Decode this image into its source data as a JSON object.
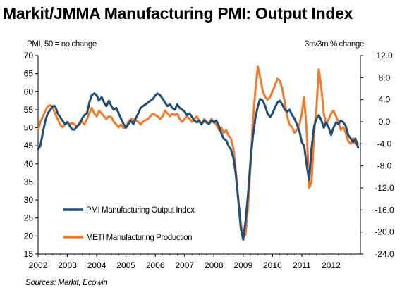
{
  "title": "Markit/JMMA Manufacturing PMI: Output Index",
  "source": "Sources: Markit, Ecowin",
  "colors": {
    "pmi": "#1f4e79",
    "meti": "#f47a2a"
  },
  "chart_data": {
    "type": "line",
    "ylabel_left": "PMI, 50 = no change",
    "ylabel_right": "3m/3m % change",
    "y_left": {
      "min": 15,
      "max": 70,
      "ticks": [
        "70",
        "65",
        "60",
        "55",
        "50",
        "45",
        "40",
        "35",
        "30",
        "25",
        "20",
        "15"
      ]
    },
    "y_right": {
      "min": -24,
      "max": 12,
      "ticks": [
        "12.0",
        "8.0",
        "4.0",
        "0.0",
        "-4.0",
        "-8.0",
        "-12.0",
        "-16.0",
        "-20.0",
        "-24.0"
      ]
    },
    "x_ticks": [
      "2002",
      "2003",
      "2004",
      "2005",
      "2006",
      "2007",
      "2008",
      "2009",
      "2010",
      "2011",
      "2012"
    ],
    "x_range": [
      2002,
      2013
    ],
    "grid": false,
    "legend_position": "bottom-left",
    "series": [
      {
        "name": "PMI Manufacturing Output Index",
        "axis": "left",
        "color": "#1f4e79",
        "points": [
          [
            2002.0,
            44.0
          ],
          [
            2002.08,
            45.0
          ],
          [
            2002.17,
            49.0
          ],
          [
            2002.25,
            52.0
          ],
          [
            2002.33,
            54.0
          ],
          [
            2002.42,
            55.0
          ],
          [
            2002.5,
            56.0
          ],
          [
            2002.58,
            56.0
          ],
          [
            2002.67,
            54.0
          ],
          [
            2002.75,
            53.0
          ],
          [
            2002.83,
            52.0
          ],
          [
            2002.92,
            51.0
          ],
          [
            2003.0,
            51.5
          ],
          [
            2003.08,
            50.5
          ],
          [
            2003.17,
            49.5
          ],
          [
            2003.25,
            49.5
          ],
          [
            2003.33,
            50.5
          ],
          [
            2003.42,
            51.0
          ],
          [
            2003.5,
            52.5
          ],
          [
            2003.58,
            53.5
          ],
          [
            2003.67,
            54.0
          ],
          [
            2003.75,
            57.0
          ],
          [
            2003.83,
            59.0
          ],
          [
            2003.92,
            59.5
          ],
          [
            2004.0,
            59.0
          ],
          [
            2004.08,
            57.5
          ],
          [
            2004.17,
            58.5
          ],
          [
            2004.25,
            57.0
          ],
          [
            2004.33,
            56.0
          ],
          [
            2004.42,
            57.5
          ],
          [
            2004.5,
            56.0
          ],
          [
            2004.58,
            55.0
          ],
          [
            2004.67,
            55.5
          ],
          [
            2004.75,
            54.0
          ],
          [
            2004.83,
            52.5
          ],
          [
            2004.92,
            51.0
          ],
          [
            2005.0,
            50.0
          ],
          [
            2005.08,
            51.0
          ],
          [
            2005.17,
            52.0
          ],
          [
            2005.25,
            51.0
          ],
          [
            2005.33,
            52.5
          ],
          [
            2005.42,
            54.0
          ],
          [
            2005.5,
            55.5
          ],
          [
            2005.58,
            56.0
          ],
          [
            2005.67,
            56.5
          ],
          [
            2005.75,
            57.0
          ],
          [
            2005.83,
            57.5
          ],
          [
            2005.92,
            58.0
          ],
          [
            2006.0,
            59.0
          ],
          [
            2006.08,
            59.5
          ],
          [
            2006.17,
            59.0
          ],
          [
            2006.25,
            58.0
          ],
          [
            2006.33,
            57.0
          ],
          [
            2006.42,
            56.0
          ],
          [
            2006.5,
            56.5
          ],
          [
            2006.58,
            55.5
          ],
          [
            2006.67,
            55.0
          ],
          [
            2006.75,
            56.5
          ],
          [
            2006.83,
            55.5
          ],
          [
            2006.92,
            55.0
          ],
          [
            2007.0,
            54.5
          ],
          [
            2007.08,
            53.5
          ],
          [
            2007.17,
            54.0
          ],
          [
            2007.25,
            53.0
          ],
          [
            2007.33,
            52.0
          ],
          [
            2007.42,
            51.5
          ],
          [
            2007.5,
            52.0
          ],
          [
            2007.58,
            51.0
          ],
          [
            2007.67,
            52.0
          ],
          [
            2007.75,
            51.5
          ],
          [
            2007.83,
            51.0
          ],
          [
            2007.92,
            52.0
          ],
          [
            2008.0,
            51.5
          ],
          [
            2008.08,
            52.0
          ],
          [
            2008.17,
            50.5
          ],
          [
            2008.25,
            48.5
          ],
          [
            2008.33,
            47.0
          ],
          [
            2008.42,
            46.5
          ],
          [
            2008.5,
            45.0
          ],
          [
            2008.58,
            44.0
          ],
          [
            2008.67,
            41.5
          ],
          [
            2008.75,
            37.0
          ],
          [
            2008.83,
            30.0
          ],
          [
            2008.92,
            22.0
          ],
          [
            2009.0,
            19.0
          ],
          [
            2009.08,
            24.0
          ],
          [
            2009.17,
            32.0
          ],
          [
            2009.25,
            41.0
          ],
          [
            2009.33,
            47.5
          ],
          [
            2009.42,
            53.0
          ],
          [
            2009.5,
            56.0
          ],
          [
            2009.58,
            58.0
          ],
          [
            2009.67,
            57.5
          ],
          [
            2009.75,
            56.0
          ],
          [
            2009.83,
            54.0
          ],
          [
            2009.92,
            53.0
          ],
          [
            2010.0,
            54.0
          ],
          [
            2010.08,
            55.5
          ],
          [
            2010.17,
            57.0
          ],
          [
            2010.25,
            57.5
          ],
          [
            2010.33,
            56.5
          ],
          [
            2010.42,
            55.0
          ],
          [
            2010.5,
            54.5
          ],
          [
            2010.58,
            55.0
          ],
          [
            2010.67,
            53.5
          ],
          [
            2010.75,
            52.5
          ],
          [
            2010.83,
            51.0
          ],
          [
            2010.92,
            49.0
          ],
          [
            2011.0,
            46.0
          ],
          [
            2011.08,
            45.0
          ],
          [
            2011.17,
            39.5
          ],
          [
            2011.25,
            35.5
          ],
          [
            2011.33,
            44.0
          ],
          [
            2011.42,
            50.5
          ],
          [
            2011.5,
            52.5
          ],
          [
            2011.58,
            53.5
          ],
          [
            2011.67,
            52.0
          ],
          [
            2011.75,
            50.0
          ],
          [
            2011.83,
            51.5
          ],
          [
            2011.92,
            50.0
          ],
          [
            2012.0,
            48.0
          ],
          [
            2012.08,
            50.0
          ],
          [
            2012.17,
            51.5
          ],
          [
            2012.25,
            51.0
          ],
          [
            2012.33,
            52.0
          ],
          [
            2012.42,
            51.5
          ],
          [
            2012.5,
            50.5
          ],
          [
            2012.58,
            48.0
          ],
          [
            2012.67,
            47.0
          ],
          [
            2012.75,
            46.0
          ],
          [
            2012.83,
            47.0
          ],
          [
            2012.92,
            44.5
          ]
        ]
      },
      {
        "name": "METI Manufacturing Production",
        "axis": "right",
        "color": "#f47a2a",
        "points": [
          [
            2002.0,
            -1.5
          ],
          [
            2002.08,
            0.0
          ],
          [
            2002.17,
            1.0
          ],
          [
            2002.25,
            2.0
          ],
          [
            2002.33,
            2.8
          ],
          [
            2002.42,
            3.0
          ],
          [
            2002.5,
            2.5
          ],
          [
            2002.58,
            1.5
          ],
          [
            2002.67,
            0.5
          ],
          [
            2002.75,
            -0.5
          ],
          [
            2002.83,
            -1.0
          ],
          [
            2002.92,
            -0.5
          ],
          [
            2003.0,
            0.0
          ],
          [
            2003.08,
            -0.5
          ],
          [
            2003.17,
            -0.2
          ],
          [
            2003.25,
            -0.5
          ],
          [
            2003.33,
            -1.0
          ],
          [
            2003.42,
            0.0
          ],
          [
            2003.5,
            0.0
          ],
          [
            2003.58,
            -0.5
          ],
          [
            2003.67,
            0.5
          ],
          [
            2003.75,
            1.5
          ],
          [
            2003.83,
            2.5
          ],
          [
            2003.92,
            1.5
          ],
          [
            2004.0,
            1.0
          ],
          [
            2004.08,
            2.0
          ],
          [
            2004.17,
            1.5
          ],
          [
            2004.25,
            1.0
          ],
          [
            2004.33,
            0.5
          ],
          [
            2004.42,
            1.0
          ],
          [
            2004.5,
            0.8
          ],
          [
            2004.58,
            0.0
          ],
          [
            2004.67,
            -0.5
          ],
          [
            2004.75,
            -1.0
          ],
          [
            2004.83,
            -0.5
          ],
          [
            2004.92,
            -1.2
          ],
          [
            2005.0,
            -1.0
          ],
          [
            2005.08,
            0.0
          ],
          [
            2005.17,
            0.5
          ],
          [
            2005.25,
            0.5
          ],
          [
            2005.33,
            0.2
          ],
          [
            2005.42,
            0.0
          ],
          [
            2005.5,
            -0.5
          ],
          [
            2005.58,
            0.0
          ],
          [
            2005.67,
            0.3
          ],
          [
            2005.75,
            0.5
          ],
          [
            2005.83,
            1.0
          ],
          [
            2005.92,
            1.5
          ],
          [
            2006.0,
            1.2
          ],
          [
            2006.08,
            1.0
          ],
          [
            2006.17,
            0.5
          ],
          [
            2006.25,
            1.0
          ],
          [
            2006.33,
            2.0
          ],
          [
            2006.42,
            1.5
          ],
          [
            2006.5,
            1.0
          ],
          [
            2006.58,
            1.5
          ],
          [
            2006.67,
            1.2
          ],
          [
            2006.75,
            1.5
          ],
          [
            2006.83,
            0.5
          ],
          [
            2006.92,
            0.0
          ],
          [
            2007.0,
            0.5
          ],
          [
            2007.08,
            1.0
          ],
          [
            2007.17,
            0.5
          ],
          [
            2007.25,
            0.0
          ],
          [
            2007.33,
            0.5
          ],
          [
            2007.42,
            1.0
          ],
          [
            2007.5,
            0.0
          ],
          [
            2007.58,
            -0.5
          ],
          [
            2007.67,
            0.5
          ],
          [
            2007.75,
            0.0
          ],
          [
            2007.83,
            -0.2
          ],
          [
            2007.92,
            0.5
          ],
          [
            2008.0,
            0.0
          ],
          [
            2008.08,
            -0.5
          ],
          [
            2008.17,
            -1.5
          ],
          [
            2008.25,
            -1.0
          ],
          [
            2008.33,
            -2.0
          ],
          [
            2008.42,
            -1.5
          ],
          [
            2008.5,
            -2.5
          ],
          [
            2008.58,
            -3.0
          ],
          [
            2008.67,
            -5.0
          ],
          [
            2008.75,
            -9.0
          ],
          [
            2008.83,
            -14.0
          ],
          [
            2008.92,
            -18.5
          ],
          [
            2009.0,
            -21.0
          ],
          [
            2009.08,
            -20.5
          ],
          [
            2009.17,
            -15.0
          ],
          [
            2009.25,
            -8.0
          ],
          [
            2009.33,
            0.0
          ],
          [
            2009.42,
            6.0
          ],
          [
            2009.5,
            10.0
          ],
          [
            2009.58,
            8.0
          ],
          [
            2009.67,
            5.5
          ],
          [
            2009.75,
            4.5
          ],
          [
            2009.83,
            4.0
          ],
          [
            2009.92,
            4.5
          ],
          [
            2010.0,
            5.5
          ],
          [
            2010.08,
            6.5
          ],
          [
            2010.17,
            7.8
          ],
          [
            2010.25,
            7.5
          ],
          [
            2010.33,
            6.0
          ],
          [
            2010.42,
            3.5
          ],
          [
            2010.5,
            1.0
          ],
          [
            2010.58,
            -0.5
          ],
          [
            2010.67,
            -1.0
          ],
          [
            2010.75,
            -2.0
          ],
          [
            2010.83,
            -1.5
          ],
          [
            2010.92,
            -0.5
          ],
          [
            2011.0,
            1.5
          ],
          [
            2011.08,
            4.5
          ],
          [
            2011.17,
            -2.0
          ],
          [
            2011.25,
            -12.0
          ],
          [
            2011.33,
            -11.0
          ],
          [
            2011.42,
            -2.0
          ],
          [
            2011.5,
            2.5
          ],
          [
            2011.58,
            9.5
          ],
          [
            2011.67,
            6.0
          ],
          [
            2011.75,
            1.5
          ],
          [
            2011.83,
            -0.5
          ],
          [
            2011.92,
            0.5
          ],
          [
            2012.0,
            1.5
          ],
          [
            2012.08,
            2.0
          ],
          [
            2012.17,
            1.0
          ],
          [
            2012.25,
            0.0
          ],
          [
            2012.33,
            -1.5
          ],
          [
            2012.42,
            -1.0
          ],
          [
            2012.5,
            -2.0
          ],
          [
            2012.58,
            -3.5
          ],
          [
            2012.67,
            -4.0
          ],
          [
            2012.75,
            -3.0
          ],
          [
            2012.83,
            -4.0
          ],
          [
            2012.92,
            -4.0
          ]
        ]
      }
    ]
  }
}
